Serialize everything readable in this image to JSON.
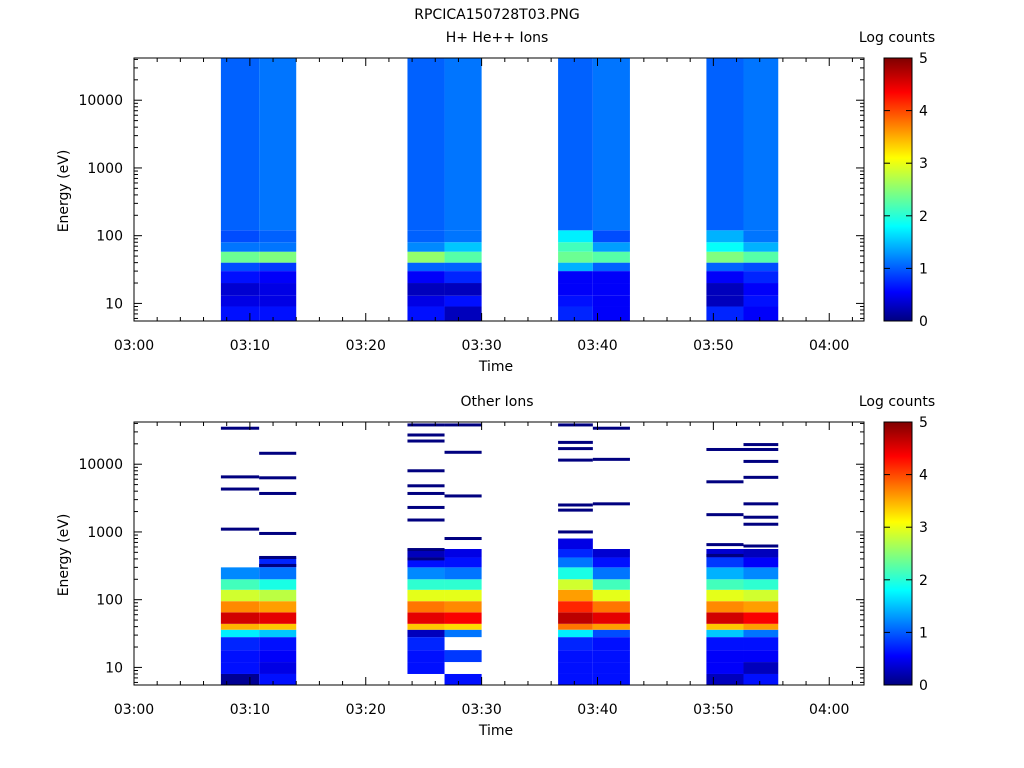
{
  "figure_title": "RPCICA150728T03.PNG",
  "colormap": [
    "#00007f",
    "#0000ff",
    "#007fff",
    "#00ffff",
    "#7fff7f",
    "#ffff00",
    "#ff7f00",
    "#ff0000",
    "#7f0000"
  ],
  "chart_data": [
    {
      "type": "heatmap",
      "title": "H+ He++ Ions",
      "xlabel": "Time",
      "ylabel": "Energy (eV)",
      "yscale": "log",
      "ylim": [
        5.5,
        42000
      ],
      "xlim": [
        "03:00",
        "04:03"
      ],
      "x_ticks": [
        "03:00",
        "03:10",
        "03:20",
        "03:30",
        "03:40",
        "03:50",
        "04:00"
      ],
      "y_ticks": [
        {
          "value": 10,
          "label": "10"
        },
        {
          "value": 100,
          "label": "100"
        },
        {
          "value": 1000,
          "label": "1000"
        },
        {
          "value": 10000,
          "label": "10000"
        }
      ],
      "colorbar": {
        "label": "Log counts",
        "range": [
          0,
          5
        ],
        "ticks": [
          "0",
          "1",
          "2",
          "3",
          "4",
          "5"
        ]
      },
      "time_bins": [
        {
          "start": "03:07.5",
          "end": "03:10.8"
        },
        {
          "start": "03:10.8",
          "end": "03:14.0"
        },
        {
          "start": "03:23.6",
          "end": "03:26.8"
        },
        {
          "start": "03:26.8",
          "end": "03:30.0"
        },
        {
          "start": "03:36.6",
          "end": "03:39.6"
        },
        {
          "start": "03:39.6",
          "end": "03:42.8"
        },
        {
          "start": "03:49.4",
          "end": "03:52.6"
        },
        {
          "start": "03:52.6",
          "end": "03:55.6"
        }
      ],
      "energy_bands": [
        {
          "range": [
            5.5,
            9
          ],
          "log_counts": [
            0.7,
            0.7,
            0.7,
            0.3,
            0.8,
            0.6,
            0.8,
            0.6
          ]
        },
        {
          "range": [
            9,
            13
          ],
          "log_counts": [
            0.5,
            0.5,
            0.5,
            0.7,
            0.7,
            0.6,
            0.3,
            0.7
          ]
        },
        {
          "range": [
            13,
            20
          ],
          "log_counts": [
            0.4,
            0.5,
            0.3,
            0.3,
            0.6,
            0.6,
            0.3,
            0.6
          ]
        },
        {
          "range": [
            20,
            30
          ],
          "log_counts": [
            0.7,
            0.6,
            0.6,
            0.8,
            0.6,
            0.6,
            0.6,
            0.8
          ]
        },
        {
          "range": [
            30,
            40
          ],
          "log_counts": [
            1.0,
            0.9,
            1.1,
            1.1,
            1.5,
            1.1,
            1.1,
            1.0
          ]
        },
        {
          "range": [
            40,
            58
          ],
          "log_counts": [
            2.4,
            2.5,
            2.6,
            2.3,
            2.4,
            2.3,
            2.5,
            2.3
          ]
        },
        {
          "range": [
            58,
            80
          ],
          "log_counts": [
            1.2,
            1.2,
            1.3,
            1.6,
            2.2,
            1.4,
            1.9,
            1.5
          ]
        },
        {
          "range": [
            80,
            120
          ],
          "log_counts": [
            1.0,
            1.1,
            1.1,
            1.2,
            1.8,
            1.0,
            1.5,
            1.2
          ]
        },
        {
          "range": [
            120,
            42000
          ],
          "log_counts": [
            1.1,
            1.2,
            1.1,
            1.2,
            1.1,
            1.2,
            1.1,
            1.2
          ]
        }
      ]
    },
    {
      "type": "heatmap",
      "title": "Other Ions",
      "xlabel": "Time",
      "ylabel": "Energy (eV)",
      "yscale": "log",
      "ylim": [
        5.5,
        42000
      ],
      "xlim": [
        "03:00",
        "04:03"
      ],
      "x_ticks": [
        "03:00",
        "03:10",
        "03:20",
        "03:30",
        "03:40",
        "03:50",
        "04:00"
      ],
      "y_ticks": [
        {
          "value": 10,
          "label": "10"
        },
        {
          "value": 100,
          "label": "100"
        },
        {
          "value": 1000,
          "label": "1000"
        },
        {
          "value": 10000,
          "label": "10000"
        }
      ],
      "colorbar": {
        "label": "Log counts",
        "range": [
          0,
          5
        ],
        "ticks": [
          "0",
          "1",
          "2",
          "3",
          "4",
          "5"
        ]
      },
      "time_bins": [
        {
          "start": "03:07.5",
          "end": "03:10.8"
        },
        {
          "start": "03:10.8",
          "end": "03:14.0"
        },
        {
          "start": "03:23.6",
          "end": "03:26.8"
        },
        {
          "start": "03:26.8",
          "end": "03:30.0"
        },
        {
          "start": "03:36.6",
          "end": "03:39.6"
        },
        {
          "start": "03:39.6",
          "end": "03:42.8"
        },
        {
          "start": "03:49.4",
          "end": "03:52.6"
        },
        {
          "start": "03:52.6",
          "end": "03:55.6"
        }
      ],
      "energy_bands": [
        {
          "range": [
            5.5,
            8
          ],
          "log_counts": [
            0.1,
            0.7,
            null,
            0.7,
            0.7,
            0.7,
            0.3,
            0.7
          ]
        },
        {
          "range": [
            8,
            12
          ],
          "log_counts": [
            0.7,
            0.5,
            0.7,
            null,
            0.7,
            0.7,
            0.6,
            0.3
          ]
        },
        {
          "range": [
            12,
            18
          ],
          "log_counts": [
            0.7,
            0.6,
            0.7,
            0.9,
            0.7,
            0.7,
            0.6,
            0.6
          ]
        },
        {
          "range": [
            18,
            28
          ],
          "log_counts": [
            0.8,
            0.7,
            0.8,
            null,
            0.8,
            0.7,
            0.7,
            0.7
          ]
        },
        {
          "range": [
            28,
            36
          ],
          "log_counts": [
            1.8,
            1.6,
            0.3,
            1.2,
            1.8,
            1.0,
            1.6,
            1.2
          ]
        },
        {
          "range": [
            36,
            44
          ],
          "log_counts": [
            3.5,
            3.4,
            3.4,
            3.3,
            3.8,
            3.6,
            3.4,
            3.6
          ]
        },
        {
          "range": [
            44,
            65
          ],
          "log_counts": [
            4.6,
            4.5,
            4.5,
            4.4,
            4.7,
            4.5,
            4.6,
            4.4
          ]
        },
        {
          "range": [
            65,
            95
          ],
          "log_counts": [
            3.7,
            3.6,
            3.8,
            3.7,
            4.2,
            3.8,
            3.7,
            3.6
          ]
        },
        {
          "range": [
            95,
            140
          ],
          "log_counts": [
            2.9,
            2.8,
            3.0,
            3.0,
            3.6,
            3.0,
            3.0,
            2.9
          ]
        },
        {
          "range": [
            140,
            200
          ],
          "log_counts": [
            2.2,
            2.0,
            2.1,
            2.1,
            2.9,
            2.2,
            2.2,
            2.1
          ]
        },
        {
          "range": [
            200,
            300
          ],
          "log_counts": [
            1.3,
            1.2,
            1.3,
            1.2,
            2.0,
            1.2,
            1.5,
            1.3
          ]
        },
        {
          "range": [
            300,
            420
          ],
          "log_counts": [
            null,
            0.8,
            0.7,
            0.7,
            1.2,
            0.7,
            0.9,
            0.6
          ]
        },
        {
          "range": [
            420,
            560
          ],
          "log_counts": [
            null,
            null,
            0.3,
            0.5,
            0.8,
            0.4,
            0.4,
            0.3
          ]
        },
        {
          "range": [
            560,
            800
          ],
          "log_counts": [
            null,
            null,
            null,
            null,
            0.5,
            null,
            null,
            null
          ]
        }
      ],
      "sparse_counts": [
        {
          "bin": 0,
          "energy": [
            34000,
            6500,
            4300,
            1100
          ]
        },
        {
          "bin": 1,
          "energy": [
            14500,
            6300,
            3700,
            950,
            420,
            320
          ]
        },
        {
          "bin": 2,
          "energy": [
            38000,
            27000,
            22000,
            8000,
            4800,
            3700,
            2300,
            1500,
            550,
            400
          ]
        },
        {
          "bin": 3,
          "energy": [
            38000,
            15000,
            3400,
            800
          ]
        },
        {
          "bin": 4,
          "energy": [
            38000,
            21000,
            17000,
            11500,
            2500,
            2100,
            1000
          ]
        },
        {
          "bin": 5,
          "energy": [
            34000,
            11800,
            2600
          ]
        },
        {
          "bin": 6,
          "energy": [
            16500,
            5500,
            1800,
            650,
            450
          ]
        },
        {
          "bin": 7,
          "energy": [
            19500,
            16500,
            11000,
            6400,
            2600,
            1650,
            1300,
            620
          ]
        }
      ]
    }
  ]
}
